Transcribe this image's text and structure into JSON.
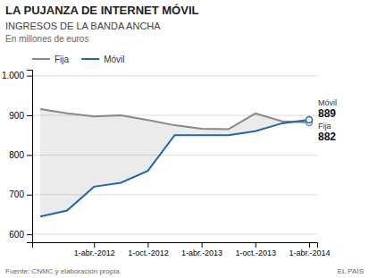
{
  "chart_data": {
    "type": "line",
    "title": "LA PUJANZA DE INTERNET MÓVIL",
    "subtitle": [
      "INGRESOS DE LA BANDA ANCHA",
      "En millones de euros"
    ],
    "annotations": [
      "Fuente: CNMC y elaboración propia",
      "EL PAÍS"
    ],
    "categories": [
      null,
      null,
      "1-abr.-2012",
      null,
      "1-oct.-2012",
      null,
      "1-abr.-2013",
      null,
      "1-oct.-2013",
      null,
      "1-abr.-2014"
    ],
    "series": [
      {
        "name": "Fija",
        "color": "#888888",
        "values": [
          916,
          905,
          897,
          900,
          888,
          875,
          866,
          865,
          905,
          885,
          882
        ]
      },
      {
        "name": "Móvil",
        "color": "#2266aa",
        "values": [
          645,
          660,
          720,
          730,
          760,
          850,
          850,
          850,
          860,
          880,
          889
        ]
      }
    ],
    "ylim": [
      580,
      1015
    ],
    "yticks": [
      600,
      700,
      800,
      900,
      {
        "value": 1000,
        "label": "1.000"
      }
    ],
    "grid": true,
    "legend": "upper left"
  }
}
